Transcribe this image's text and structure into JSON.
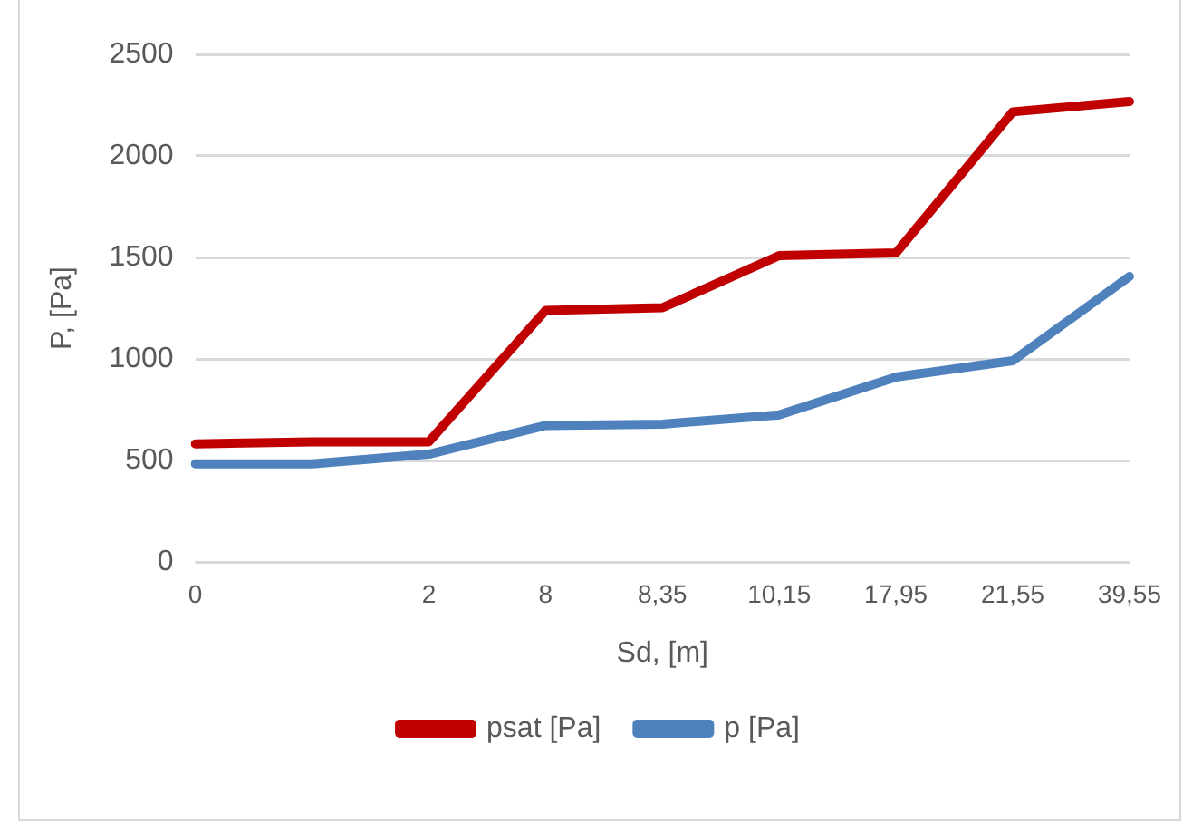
{
  "chart_data": {
    "type": "line",
    "xlabel": "Sd, [m]",
    "ylabel": "P, [Pa]",
    "categories": [
      "0",
      null,
      "2",
      "8",
      "8,35",
      "10,15",
      "17,95",
      "21,55",
      "39,55"
    ],
    "series": [
      {
        "name": "psat [Pa]",
        "color": "#c00000",
        "values": [
          582,
          592,
          592,
          1239,
          1252,
          1509,
          1522,
          2217,
          2268
        ]
      },
      {
        "name": "p [Pa]",
        "color": "#4f81bd",
        "values": [
          483,
          483,
          531,
          672,
          679,
          724,
          911,
          991,
          1406
        ]
      }
    ],
    "ylim": [
      0,
      2500
    ],
    "yticks": [
      0,
      500,
      1000,
      1500,
      2000,
      2500
    ],
    "grid": "y",
    "legend": "bottom",
    "marker": "none",
    "line_style": "solid"
  }
}
